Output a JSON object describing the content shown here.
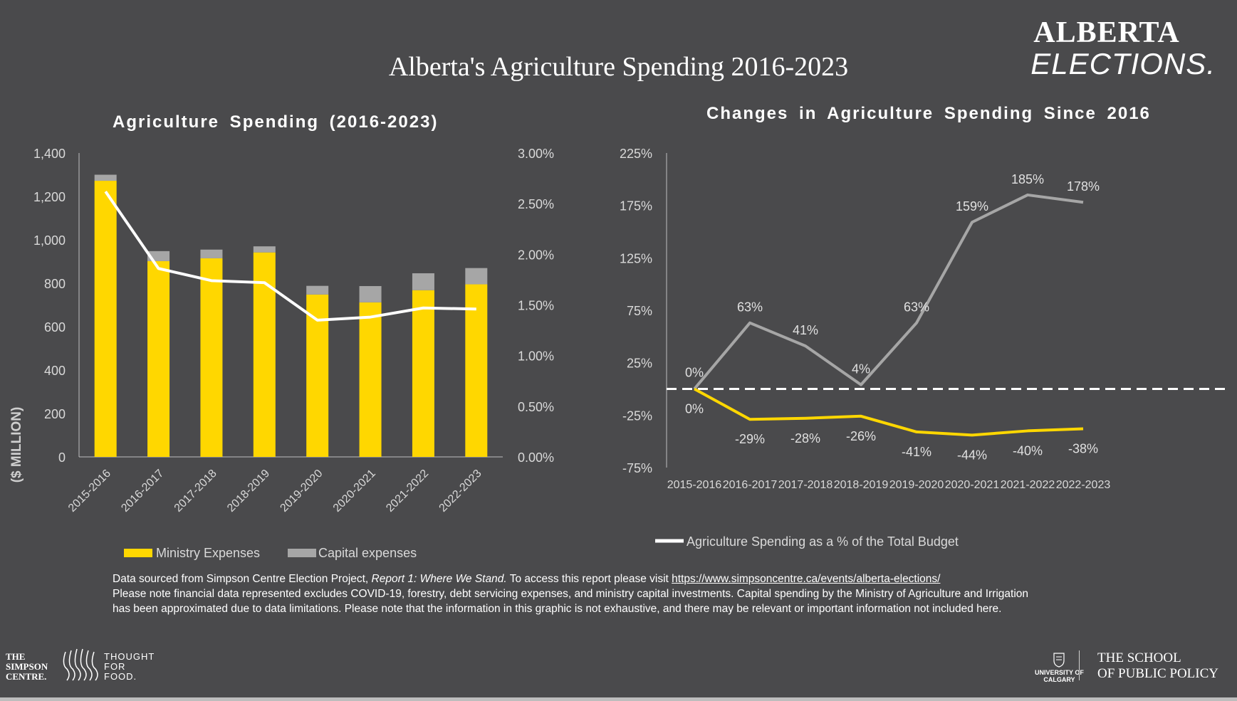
{
  "page": {
    "main_title": "Alberta's Agriculture Spending 2016-2023",
    "brand_line1": "ALBERTA",
    "brand_line2": "ELECTIONS.",
    "notes": {
      "line1_prefix": "Data sourced from Simpson Centre Election Project, ",
      "line1_italic": "Report 1: Where We Stand.",
      "line1_middle": " To access this report please visit ",
      "line1_link": "https://www.simpsoncentre.ca/events/alberta-elections/",
      "line2": "Please note financial data represented excludes COVID-19, forestry, debt servicing expenses, and ministry capital investments. Capital spending by the Ministry of Agriculture and Irrigation",
      "line3": "has been approximated due to data limitations. Please note that the information in this graphic is not exhaustive, and there may be relevant or important information not included here."
    },
    "footer": {
      "simpson_line1": "THE",
      "simpson_line2": "SIMPSON",
      "simpson_line3": "CENTRE.",
      "thought_line1": "THOUGHT",
      "thought_line2": "FOR",
      "thought_line3": "FOOD.",
      "uofc_line1": "UNIVERSITY OF",
      "uofc_line2": "CALGARY",
      "sopp_line1": "THE SCHOOL",
      "sopp_line2": "OF PUBLIC POLICY"
    }
  },
  "chart_data": [
    {
      "type": "bar",
      "title": "Agriculture Spending (2016-2023)",
      "ylabel": "($ MILLION)",
      "ylim": [
        0,
        1400
      ],
      "yticks": [
        "1,400",
        "1,200",
        "1,000",
        "800",
        "600",
        "400",
        "200",
        "0"
      ],
      "y2lim": [
        0,
        3.0
      ],
      "y2ticks": [
        "3.00%",
        "2.50%",
        "2.00%",
        "1.50%",
        "1.00%",
        "0.50%",
        "0.00%"
      ],
      "categories": [
        "2015-2016",
        "2016-2017",
        "2017-2018",
        "2018-2019",
        "2019-2020",
        "2020-2021",
        "2021-2022",
        "2022-2023"
      ],
      "stacked": true,
      "series": [
        {
          "name": "Ministry  Expenses",
          "color": "#ffd700",
          "values": [
            1272,
            902,
            915,
            942,
            748,
            712,
            768,
            795
          ]
        },
        {
          "name": "Capital expenses",
          "color": "#a6a6a6",
          "values": [
            28,
            46,
            40,
            28,
            40,
            75,
            78,
            75
          ]
        }
      ],
      "line_series": {
        "name": "Agriculture Spending as a % of the Total Budget",
        "axis": "right",
        "color": "#ffffff",
        "values": [
          2.62,
          1.86,
          1.74,
          1.72,
          1.35,
          1.38,
          1.47,
          1.46
        ]
      },
      "legend_position": "bottom"
    },
    {
      "type": "line",
      "title": "Changes in Agriculture Spending Since 2016",
      "ylim": [
        -75,
        225
      ],
      "yticks": [
        "225%",
        "175%",
        "125%",
        "75%",
        "25%",
        "-25%",
        "-75%"
      ],
      "categories": [
        "2015-2016",
        "2016-2017",
        "2017-2018",
        "2018-2019",
        "2019-2020",
        "2020-2021",
        "2021-2022",
        "2022-2023"
      ],
      "reference_line": 0,
      "series": [
        {
          "color": "#a6a6a6",
          "values": [
            0,
            63,
            41,
            4,
            63,
            159,
            185,
            178
          ],
          "labels": [
            "0%",
            "63%",
            "41%",
            "4%",
            "63%",
            "159%",
            "185%",
            "178%"
          ]
        },
        {
          "color": "#ffd700",
          "values": [
            0,
            -29,
            -28,
            -26,
            -41,
            -44,
            -40,
            -38
          ],
          "labels": [
            "0%",
            "-29%",
            "-28%",
            "-26%",
            "-41%",
            "-44%",
            "-40%",
            "-38%"
          ]
        }
      ]
    }
  ]
}
